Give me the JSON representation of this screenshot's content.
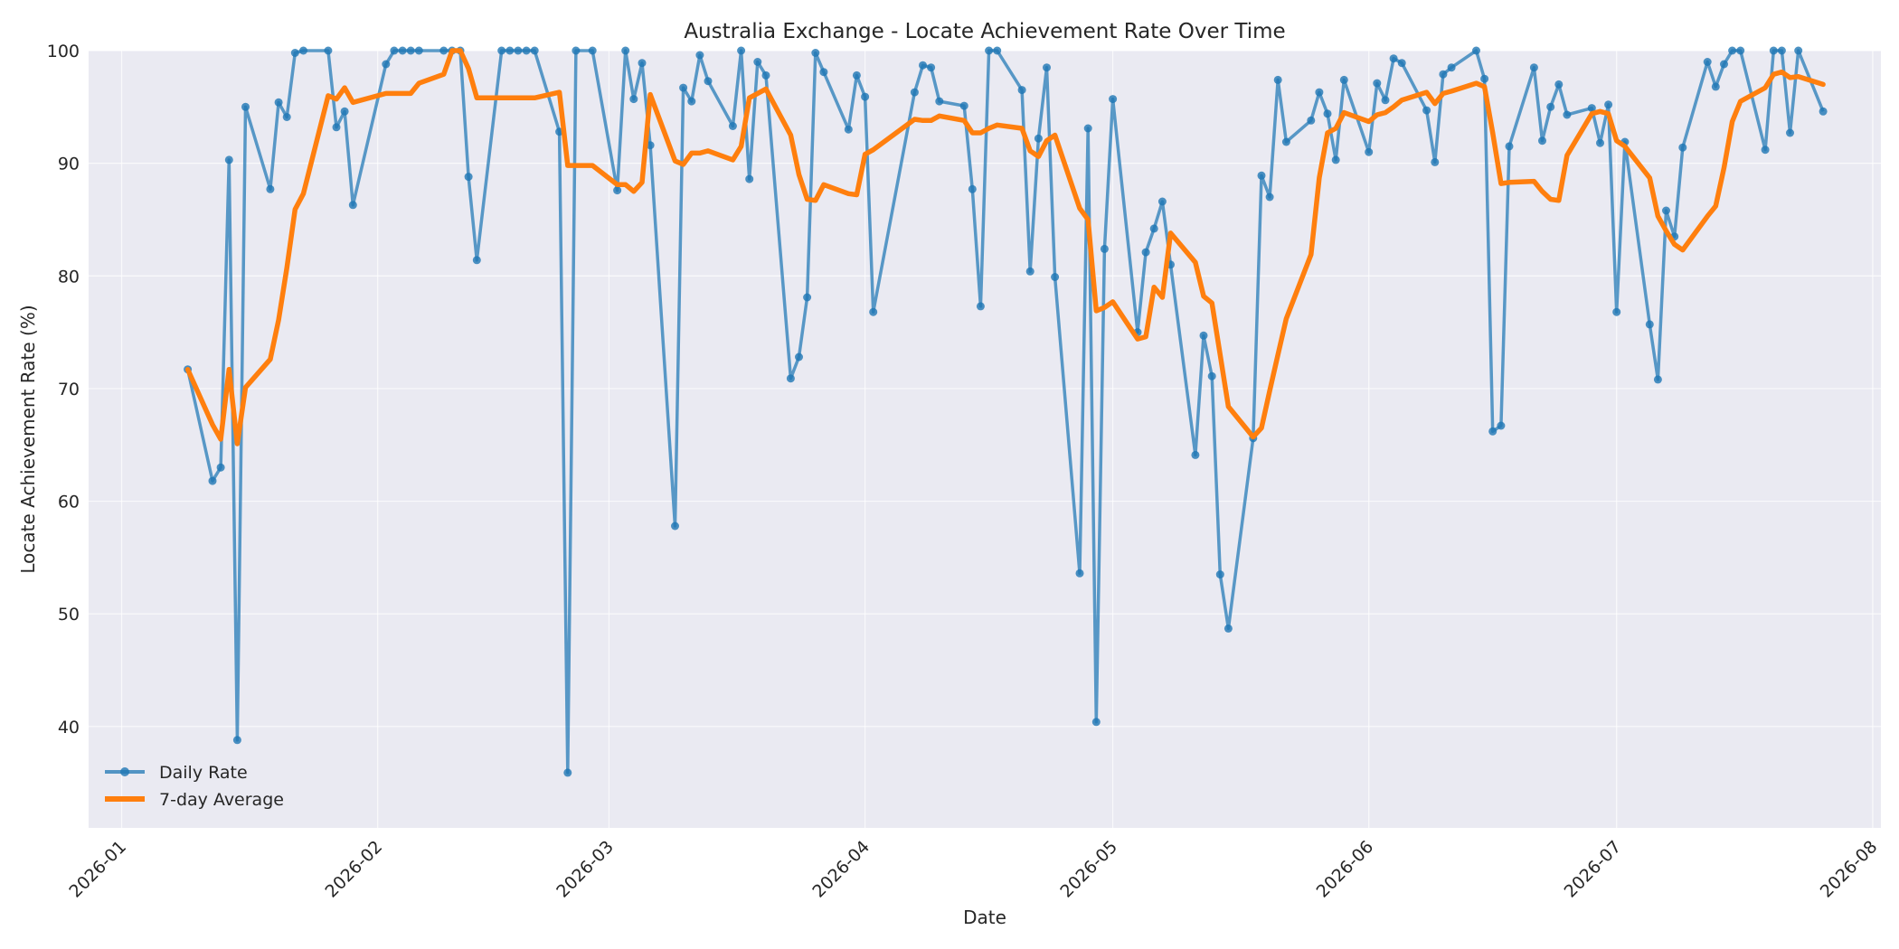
{
  "chart_data": {
    "type": "line",
    "title": "Australia Exchange - Locate Achievement Rate Over Time",
    "xlabel": "Date",
    "ylabel": "Locate Achievement Rate (%)",
    "xlim": [
      "2025-12-28",
      "2026-08-02"
    ],
    "ylim": [
      31,
      100
    ],
    "x_ticks": [
      "2026-01",
      "2026-02",
      "2026-03",
      "2026-04",
      "2026-05",
      "2026-06",
      "2026-07",
      "2026-08"
    ],
    "x_tick_dates": [
      "2026-01-01",
      "2026-02-01",
      "2026-03-01",
      "2026-04-01",
      "2026-05-01",
      "2026-06-01",
      "2026-07-01",
      "2026-08-01"
    ],
    "y_ticks": [
      40,
      50,
      60,
      70,
      80,
      90,
      100
    ],
    "grid": true,
    "legend_position": "lower-left",
    "series": [
      {
        "name": "Daily Rate",
        "color": "#1f77b4",
        "marker": "circle",
        "points": [
          [
            "2026-01-09",
            71.7
          ],
          [
            "2026-01-12",
            61.8
          ],
          [
            "2026-01-13",
            63.0
          ],
          [
            "2026-01-14",
            90.3
          ],
          [
            "2026-01-15",
            38.8
          ],
          [
            "2026-01-16",
            95.0
          ],
          [
            "2026-01-19",
            87.7
          ],
          [
            "2026-01-20",
            95.4
          ],
          [
            "2026-01-21",
            94.1
          ],
          [
            "2026-01-22",
            99.8
          ],
          [
            "2026-01-23",
            100.0
          ],
          [
            "2026-01-26",
            100.0
          ],
          [
            "2026-01-27",
            93.2
          ],
          [
            "2026-01-28",
            94.6
          ],
          [
            "2026-01-29",
            86.3
          ],
          [
            "2026-02-02",
            98.8
          ],
          [
            "2026-02-03",
            100.0
          ],
          [
            "2026-02-04",
            100.0
          ],
          [
            "2026-02-05",
            100.0
          ],
          [
            "2026-02-06",
            100.0
          ],
          [
            "2026-02-09",
            100.0
          ],
          [
            "2026-02-10",
            100.0
          ],
          [
            "2026-02-11",
            100.0
          ],
          [
            "2026-02-12",
            88.8
          ],
          [
            "2026-02-13",
            81.4
          ],
          [
            "2026-02-16",
            100.0
          ],
          [
            "2026-02-17",
            100.0
          ],
          [
            "2026-02-18",
            100.0
          ],
          [
            "2026-02-19",
            100.0
          ],
          [
            "2026-02-20",
            100.0
          ],
          [
            "2026-02-23",
            92.8
          ],
          [
            "2026-02-24",
            35.9
          ],
          [
            "2026-02-25",
            100.0
          ],
          [
            "2026-02-27",
            100.0
          ],
          [
            "2026-03-02",
            87.6
          ],
          [
            "2026-03-03",
            100.0
          ],
          [
            "2026-03-04",
            95.7
          ],
          [
            "2026-03-05",
            98.9
          ],
          [
            "2026-03-06",
            91.6
          ],
          [
            "2026-03-09",
            57.8
          ],
          [
            "2026-03-10",
            96.7
          ],
          [
            "2026-03-11",
            95.5
          ],
          [
            "2026-03-12",
            99.6
          ],
          [
            "2026-03-13",
            97.3
          ],
          [
            "2026-03-16",
            93.3
          ],
          [
            "2026-03-17",
            100.0
          ],
          [
            "2026-03-18",
            88.6
          ],
          [
            "2026-03-19",
            99.0
          ],
          [
            "2026-03-20",
            97.8
          ],
          [
            "2026-03-23",
            70.9
          ],
          [
            "2026-03-24",
            72.8
          ],
          [
            "2026-03-25",
            78.1
          ],
          [
            "2026-03-26",
            99.8
          ],
          [
            "2026-03-27",
            98.1
          ],
          [
            "2026-03-30",
            93.0
          ],
          [
            "2026-03-31",
            97.8
          ],
          [
            "2026-04-01",
            95.9
          ],
          [
            "2026-04-02",
            76.8
          ],
          [
            "2026-04-07",
            96.3
          ],
          [
            "2026-04-08",
            98.7
          ],
          [
            "2026-04-09",
            98.5
          ],
          [
            "2026-04-10",
            95.5
          ],
          [
            "2026-04-13",
            95.1
          ],
          [
            "2026-04-14",
            87.7
          ],
          [
            "2026-04-15",
            77.3
          ],
          [
            "2026-04-16",
            100.0
          ],
          [
            "2026-04-17",
            100.0
          ],
          [
            "2026-04-20",
            96.5
          ],
          [
            "2026-04-21",
            80.4
          ],
          [
            "2026-04-22",
            92.2
          ],
          [
            "2026-04-23",
            98.5
          ],
          [
            "2026-04-24",
            79.9
          ],
          [
            "2026-04-27",
            53.6
          ],
          [
            "2026-04-28",
            93.1
          ],
          [
            "2026-04-29",
            40.4
          ],
          [
            "2026-04-30",
            82.4
          ],
          [
            "2026-05-01",
            95.7
          ],
          [
            "2026-05-04",
            75.0
          ],
          [
            "2026-05-05",
            82.1
          ],
          [
            "2026-05-06",
            84.2
          ],
          [
            "2026-05-07",
            86.6
          ],
          [
            "2026-05-08",
            81.0
          ],
          [
            "2026-05-11",
            64.1
          ],
          [
            "2026-05-12",
            74.7
          ],
          [
            "2026-05-13",
            71.1
          ],
          [
            "2026-05-14",
            53.5
          ],
          [
            "2026-05-15",
            48.7
          ],
          [
            "2026-05-18",
            65.6
          ],
          [
            "2026-05-19",
            88.9
          ],
          [
            "2026-05-20",
            87.0
          ],
          [
            "2026-05-21",
            97.4
          ],
          [
            "2026-05-22",
            91.9
          ],
          [
            "2026-05-25",
            93.8
          ],
          [
            "2026-05-26",
            96.3
          ],
          [
            "2026-05-27",
            94.4
          ],
          [
            "2026-05-28",
            90.3
          ],
          [
            "2026-05-29",
            97.4
          ],
          [
            "2026-06-01",
            91.0
          ],
          [
            "2026-06-02",
            97.1
          ],
          [
            "2026-06-03",
            95.6
          ],
          [
            "2026-06-04",
            99.3
          ],
          [
            "2026-06-05",
            98.9
          ],
          [
            "2026-06-08",
            94.7
          ],
          [
            "2026-06-09",
            90.1
          ],
          [
            "2026-06-10",
            97.9
          ],
          [
            "2026-06-11",
            98.5
          ],
          [
            "2026-06-14",
            100.0
          ],
          [
            "2026-06-15",
            97.5
          ],
          [
            "2026-06-16",
            66.2
          ],
          [
            "2026-06-17",
            66.7
          ],
          [
            "2026-06-18",
            91.5
          ],
          [
            "2026-06-21",
            98.5
          ],
          [
            "2026-06-22",
            92.0
          ],
          [
            "2026-06-23",
            95.0
          ],
          [
            "2026-06-24",
            97.0
          ],
          [
            "2026-06-25",
            94.3
          ],
          [
            "2026-06-28",
            94.9
          ],
          [
            "2026-06-29",
            91.8
          ],
          [
            "2026-06-30",
            95.2
          ],
          [
            "2026-07-01",
            76.8
          ],
          [
            "2026-07-02",
            91.9
          ],
          [
            "2026-07-05",
            75.7
          ],
          [
            "2026-07-06",
            70.8
          ],
          [
            "2026-07-07",
            85.8
          ],
          [
            "2026-07-08",
            83.5
          ],
          [
            "2026-07-09",
            91.4
          ],
          [
            "2026-07-12",
            99.0
          ],
          [
            "2026-07-13",
            96.8
          ],
          [
            "2026-07-14",
            98.8
          ],
          [
            "2026-07-15",
            100.0
          ],
          [
            "2026-07-16",
            100.0
          ],
          [
            "2026-07-19",
            91.2
          ],
          [
            "2026-07-20",
            100.0
          ],
          [
            "2026-07-21",
            100.0
          ],
          [
            "2026-07-22",
            92.7
          ],
          [
            "2026-07-23",
            100.0
          ],
          [
            "2026-07-26",
            94.6
          ]
        ]
      },
      {
        "name": "7-day Average",
        "color": "#ff7f0e",
        "marker": "none",
        "points": [
          [
            "2026-01-09",
            71.7
          ],
          [
            "2026-01-12",
            66.8
          ],
          [
            "2026-01-13",
            65.5
          ],
          [
            "2026-01-14",
            71.7
          ],
          [
            "2026-01-15",
            65.1
          ],
          [
            "2026-01-16",
            70.1
          ],
          [
            "2026-01-19",
            72.6
          ],
          [
            "2026-01-20",
            76.1
          ],
          [
            "2026-01-21",
            80.7
          ],
          [
            "2026-01-22",
            85.9
          ],
          [
            "2026-01-23",
            87.3
          ],
          [
            "2026-01-26",
            96.0
          ],
          [
            "2026-01-27",
            95.7
          ],
          [
            "2026-01-28",
            96.7
          ],
          [
            "2026-01-29",
            95.4
          ],
          [
            "2026-02-02",
            96.2
          ],
          [
            "2026-02-03",
            96.2
          ],
          [
            "2026-02-04",
            96.2
          ],
          [
            "2026-02-05",
            96.2
          ],
          [
            "2026-02-06",
            97.1
          ],
          [
            "2026-02-09",
            97.9
          ],
          [
            "2026-02-10",
            100.0
          ],
          [
            "2026-02-11",
            100.0
          ],
          [
            "2026-02-12",
            98.4
          ],
          [
            "2026-02-13",
            95.8
          ],
          [
            "2026-02-16",
            95.8
          ],
          [
            "2026-02-17",
            95.8
          ],
          [
            "2026-02-18",
            95.8
          ],
          [
            "2026-02-19",
            95.8
          ],
          [
            "2026-02-20",
            95.8
          ],
          [
            "2026-02-23",
            96.3
          ],
          [
            "2026-02-24",
            89.8
          ],
          [
            "2026-02-25",
            89.8
          ],
          [
            "2026-02-27",
            89.8
          ],
          [
            "2026-03-02",
            88.1
          ],
          [
            "2026-03-03",
            88.1
          ],
          [
            "2026-03-04",
            87.5
          ],
          [
            "2026-03-05",
            88.3
          ],
          [
            "2026-03-06",
            96.1
          ],
          [
            "2026-03-09",
            90.2
          ],
          [
            "2026-03-10",
            89.9
          ],
          [
            "2026-03-11",
            90.9
          ],
          [
            "2026-03-12",
            90.9
          ],
          [
            "2026-03-13",
            91.1
          ],
          [
            "2026-03-16",
            90.3
          ],
          [
            "2026-03-17",
            91.5
          ],
          [
            "2026-03-18",
            95.8
          ],
          [
            "2026-03-19",
            96.2
          ],
          [
            "2026-03-20",
            96.6
          ],
          [
            "2026-03-23",
            92.5
          ],
          [
            "2026-03-24",
            89.0
          ],
          [
            "2026-03-25",
            86.8
          ],
          [
            "2026-03-26",
            86.7
          ],
          [
            "2026-03-27",
            88.1
          ],
          [
            "2026-03-30",
            87.3
          ],
          [
            "2026-03-31",
            87.2
          ],
          [
            "2026-04-01",
            90.8
          ],
          [
            "2026-04-02",
            91.2
          ],
          [
            "2026-04-07",
            93.9
          ],
          [
            "2026-04-08",
            93.8
          ],
          [
            "2026-04-09",
            93.8
          ],
          [
            "2026-04-10",
            94.2
          ],
          [
            "2026-04-13",
            93.8
          ],
          [
            "2026-04-14",
            92.7
          ],
          [
            "2026-04-15",
            92.7
          ],
          [
            "2026-04-16",
            93.1
          ],
          [
            "2026-04-17",
            93.4
          ],
          [
            "2026-04-20",
            93.1
          ],
          [
            "2026-04-21",
            91.1
          ],
          [
            "2026-04-22",
            90.6
          ],
          [
            "2026-04-23",
            92.0
          ],
          [
            "2026-04-24",
            92.5
          ],
          [
            "2026-04-27",
            86.0
          ],
          [
            "2026-04-28",
            85.0
          ],
          [
            "2026-04-29",
            76.9
          ],
          [
            "2026-04-30",
            77.2
          ],
          [
            "2026-05-01",
            77.7
          ],
          [
            "2026-05-04",
            74.4
          ],
          [
            "2026-05-05",
            74.6
          ],
          [
            "2026-05-06",
            79.0
          ],
          [
            "2026-05-07",
            78.1
          ],
          [
            "2026-05-08",
            83.8
          ],
          [
            "2026-05-11",
            81.2
          ],
          [
            "2026-05-12",
            78.2
          ],
          [
            "2026-05-13",
            77.6
          ],
          [
            "2026-05-14",
            73.0
          ],
          [
            "2026-05-15",
            68.4
          ],
          [
            "2026-05-18",
            65.7
          ],
          [
            "2026-05-19",
            66.5
          ],
          [
            "2026-05-20",
            69.8
          ],
          [
            "2026-05-21",
            73.0
          ],
          [
            "2026-05-22",
            76.2
          ],
          [
            "2026-05-25",
            81.9
          ],
          [
            "2026-05-26",
            88.7
          ],
          [
            "2026-05-27",
            92.7
          ],
          [
            "2026-05-28",
            93.1
          ],
          [
            "2026-05-29",
            94.5
          ],
          [
            "2026-06-01",
            93.7
          ],
          [
            "2026-06-02",
            94.3
          ],
          [
            "2026-06-03",
            94.5
          ],
          [
            "2026-06-04",
            95.0
          ],
          [
            "2026-06-05",
            95.6
          ],
          [
            "2026-06-08",
            96.3
          ],
          [
            "2026-06-09",
            95.3
          ],
          [
            "2026-06-10",
            96.2
          ],
          [
            "2026-06-11",
            96.4
          ],
          [
            "2026-06-14",
            97.1
          ],
          [
            "2026-06-15",
            96.8
          ],
          [
            "2026-06-16",
            92.7
          ],
          [
            "2026-06-17",
            88.2
          ],
          [
            "2026-06-18",
            88.3
          ],
          [
            "2026-06-21",
            88.4
          ],
          [
            "2026-06-22",
            87.5
          ],
          [
            "2026-06-23",
            86.8
          ],
          [
            "2026-06-24",
            86.7
          ],
          [
            "2026-06-25",
            90.7
          ],
          [
            "2026-06-28",
            94.4
          ],
          [
            "2026-06-29",
            94.6
          ],
          [
            "2026-06-30",
            94.4
          ],
          [
            "2026-07-01",
            92.0
          ],
          [
            "2026-07-02",
            91.5
          ],
          [
            "2026-07-05",
            88.7
          ],
          [
            "2026-07-06",
            85.3
          ],
          [
            "2026-07-07",
            84.0
          ],
          [
            "2026-07-08",
            82.8
          ],
          [
            "2026-07-09",
            82.3
          ],
          [
            "2026-07-12",
            85.3
          ],
          [
            "2026-07-13",
            86.2
          ],
          [
            "2026-07-14",
            89.6
          ],
          [
            "2026-07-15",
            93.7
          ],
          [
            "2026-07-16",
            95.5
          ],
          [
            "2026-07-19",
            96.7
          ],
          [
            "2026-07-20",
            97.9
          ],
          [
            "2026-07-21",
            98.1
          ],
          [
            "2026-07-22",
            97.6
          ],
          [
            "2026-07-23",
            97.7
          ],
          [
            "2026-07-26",
            97.0
          ]
        ]
      }
    ]
  }
}
